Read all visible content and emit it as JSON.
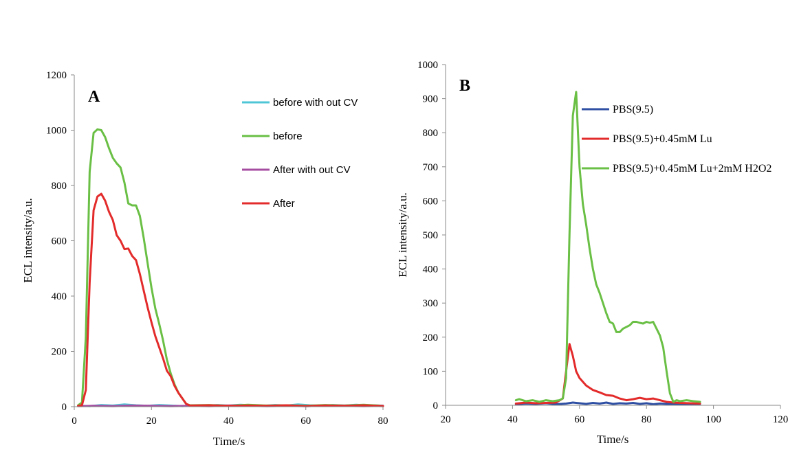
{
  "chart_data": [
    {
      "panel": "A",
      "type": "line",
      "xlabel": "Time/s",
      "ylabel": "ECL intensity/a.u.",
      "xlim": [
        0,
        80
      ],
      "ylim": [
        0,
        1200
      ],
      "xticks": [
        0,
        20,
        40,
        60,
        80
      ],
      "yticks": [
        0,
        200,
        400,
        600,
        800,
        1000,
        1200
      ],
      "legend_position": "top-right",
      "series": [
        {
          "name": "before with out CV",
          "color": "#4fc6d6",
          "x": [
            1,
            4,
            7,
            10,
            13,
            16,
            19,
            22,
            25,
            28,
            31,
            34,
            37,
            40,
            43,
            46,
            49,
            52,
            55,
            58,
            61,
            64,
            67,
            70,
            73,
            76,
            79,
            80
          ],
          "y": [
            3,
            2,
            6,
            4,
            8,
            5,
            3,
            6,
            4,
            2,
            5,
            3,
            6,
            4,
            7,
            5,
            3,
            6,
            4,
            8,
            5,
            3,
            6,
            4,
            7,
            5,
            4,
            3
          ]
        },
        {
          "name": "before",
          "color": "#6abf45",
          "x": [
            1,
            2,
            3,
            4,
            5,
            6,
            7,
            8,
            9,
            10,
            11,
            12,
            13,
            14,
            15,
            16,
            17,
            18,
            19,
            20,
            21,
            22,
            23,
            24,
            25,
            26,
            27,
            28,
            29,
            30,
            35,
            40,
            45,
            50,
            55,
            60,
            65,
            70,
            75,
            80
          ],
          "y": [
            5,
            15,
            250,
            850,
            990,
            1003,
            1000,
            975,
            935,
            900,
            880,
            865,
            810,
            735,
            728,
            728,
            690,
            610,
            520,
            430,
            355,
            300,
            240,
            170,
            120,
            80,
            50,
            30,
            10,
            5,
            6,
            3,
            7,
            4,
            5,
            3,
            6,
            4,
            7,
            3
          ]
        },
        {
          "name": "After with out CV",
          "color": "#a64ca0",
          "x": [
            1,
            5,
            10,
            15,
            20,
            25,
            30,
            35,
            40,
            45,
            50,
            55,
            60,
            65,
            70,
            75,
            80
          ],
          "y": [
            2,
            3,
            2,
            4,
            3,
            2,
            3,
            2,
            4,
            3,
            2,
            3,
            2,
            4,
            3,
            2,
            3
          ]
        },
        {
          "name": "After",
          "color": "#e32b2b",
          "x": [
            1,
            2,
            3,
            4,
            5,
            6,
            7,
            8,
            9,
            10,
            11,
            12,
            13,
            14,
            15,
            16,
            17,
            18,
            19,
            20,
            21,
            22,
            23,
            24,
            25,
            26,
            27,
            28,
            29,
            30,
            35,
            40,
            45,
            50,
            55,
            60,
            65,
            70,
            75,
            80
          ],
          "y": [
            3,
            5,
            60,
            450,
            710,
            760,
            770,
            745,
            705,
            675,
            620,
            600,
            570,
            572,
            545,
            530,
            480,
            420,
            360,
            305,
            255,
            215,
            175,
            130,
            110,
            75,
            50,
            30,
            10,
            4,
            5,
            3,
            4,
            3,
            5,
            2,
            4,
            3,
            5,
            2
          ]
        }
      ]
    },
    {
      "panel": "B",
      "type": "line",
      "xlabel": "Time/s",
      "ylabel": "ECL intensity/a.u.",
      "xlim": [
        20,
        120
      ],
      "ylim": [
        0,
        1000
      ],
      "xticks": [
        20,
        40,
        60,
        80,
        100,
        120
      ],
      "yticks": [
        0,
        100,
        200,
        300,
        400,
        500,
        600,
        700,
        800,
        900,
        1000
      ],
      "legend_position": "top-right",
      "series": [
        {
          "name": "PBS(9.5)",
          "color": "#2e4fa3",
          "x": [
            41,
            44,
            47,
            50,
            53,
            56,
            58,
            60,
            62,
            64,
            66,
            68,
            70,
            72,
            74,
            76,
            78,
            80,
            82,
            84,
            86,
            88,
            90,
            93,
            96
          ],
          "y": [
            3,
            5,
            4,
            6,
            3,
            5,
            8,
            6,
            4,
            7,
            5,
            8,
            4,
            6,
            5,
            7,
            4,
            6,
            3,
            5,
            4,
            3,
            4,
            3,
            4
          ]
        },
        {
          "name": "PBS(9.5)+0.45mM Lu",
          "color": "#e32b2b",
          "x": [
            41,
            44,
            47,
            50,
            53,
            55,
            56,
            57,
            58,
            59,
            60,
            62,
            64,
            66,
            68,
            70,
            72,
            74,
            76,
            78,
            80,
            82,
            84,
            86,
            88,
            90,
            93,
            96
          ],
          "y": [
            5,
            8,
            6,
            7,
            8,
            20,
            100,
            180,
            145,
            100,
            80,
            58,
            45,
            38,
            30,
            28,
            20,
            15,
            18,
            22,
            18,
            20,
            15,
            10,
            8,
            7,
            6,
            5
          ]
        },
        {
          "name": "PBS(9.5)+0.45mM Lu+2mM H2O2",
          "color": "#6abf45",
          "x": [
            41,
            42,
            44,
            46,
            48,
            50,
            52,
            54,
            55,
            56,
            57,
            58,
            59,
            60,
            61,
            62,
            63,
            64,
            65,
            66,
            67,
            68,
            69,
            70,
            71,
            72,
            73,
            74,
            75,
            76,
            77,
            78,
            79,
            80,
            81,
            82,
            83,
            84,
            85,
            86,
            87,
            88,
            89,
            90,
            92,
            94,
            96
          ],
          "y": [
            15,
            18,
            12,
            15,
            10,
            15,
            12,
            15,
            20,
            80,
            500,
            850,
            920,
            700,
            590,
            530,
            460,
            400,
            355,
            330,
            300,
            270,
            245,
            240,
            215,
            215,
            225,
            230,
            235,
            245,
            245,
            242,
            240,
            245,
            242,
            245,
            225,
            205,
            170,
            100,
            35,
            10,
            15,
            12,
            15,
            12,
            10
          ]
        }
      ]
    }
  ]
}
